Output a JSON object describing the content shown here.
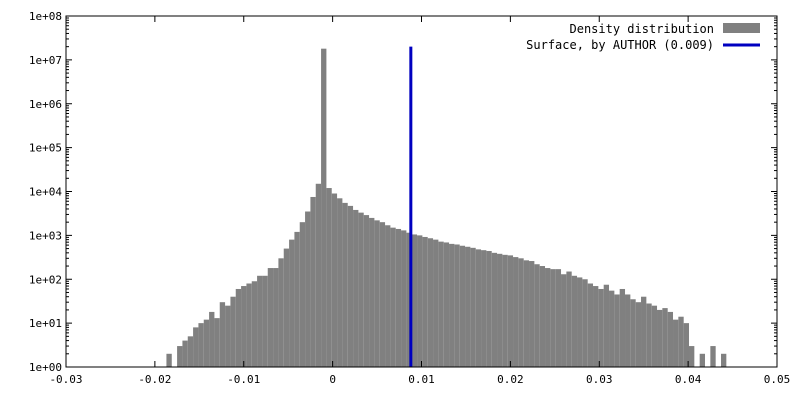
{
  "chart_data": {
    "type": "bar",
    "title": "",
    "xlabel": "",
    "ylabel": "",
    "y_scale": "log",
    "xlim": [
      -0.03,
      0.05
    ],
    "ylim": [
      1,
      100000000
    ],
    "grid": false,
    "legend_position": "top-right",
    "xticks": [
      "-0.03",
      "-0.02",
      "-0.01",
      "0",
      "0.01",
      "0.02",
      "0.03",
      "0.04",
      "0.05"
    ],
    "yticks": [
      "1e+00",
      "1e+01",
      "1e+02",
      "1e+03",
      "1e+04",
      "1e+05",
      "1e+06",
      "1e+07",
      "1e+08"
    ],
    "series": [
      {
        "name": "Density distribution",
        "color": "#808080",
        "bin_width": 0.0006,
        "x": [
          -0.0184,
          -0.0178,
          -0.0172,
          -0.0166,
          -0.016,
          -0.0154,
          -0.0148,
          -0.0142,
          -0.0136,
          -0.013,
          -0.0124,
          -0.0118,
          -0.0112,
          -0.0106,
          -0.01,
          -0.0094,
          -0.0088,
          -0.0082,
          -0.0076,
          -0.007,
          -0.0064,
          -0.0058,
          -0.0052,
          -0.0046,
          -0.004,
          -0.0034,
          -0.0028,
          -0.0022,
          -0.0016,
          -0.001,
          -0.0004,
          0.0002,
          0.0008,
          0.0014,
          0.002,
          0.0026,
          0.0032,
          0.0038,
          0.0044,
          0.005,
          0.0056,
          0.0062,
          0.0068,
          0.0074,
          0.008,
          0.0086,
          0.0092,
          0.0098,
          0.0104,
          0.011,
          0.0116,
          0.0122,
          0.0128,
          0.0134,
          0.014,
          0.0146,
          0.0152,
          0.0158,
          0.0164,
          0.017,
          0.0176,
          0.0182,
          0.0188,
          0.0194,
          0.02,
          0.0206,
          0.0212,
          0.0218,
          0.0224,
          0.023,
          0.0236,
          0.0242,
          0.0248,
          0.0254,
          0.026,
          0.0266,
          0.0272,
          0.0278,
          0.0284,
          0.029,
          0.0296,
          0.0302,
          0.0308,
          0.0314,
          0.032,
          0.0326,
          0.0332,
          0.0338,
          0.0344,
          0.035,
          0.0356,
          0.0362,
          0.0368,
          0.0374,
          0.038,
          0.0386,
          0.0392,
          0.0398,
          0.0404,
          0.041,
          0.0416,
          0.0422,
          0.0428,
          0.0434,
          0.044
        ],
        "values": [
          2,
          1,
          3,
          4,
          5,
          8,
          10,
          12,
          18,
          13,
          30,
          25,
          40,
          60,
          70,
          80,
          90,
          120,
          120,
          180,
          180,
          300,
          500,
          800,
          1200,
          2000,
          3500,
          7500,
          15000,
          18000000,
          12000,
          9000,
          7000,
          5500,
          4700,
          3800,
          3300,
          2900,
          2500,
          2200,
          2000,
          1700,
          1500,
          1400,
          1300,
          1150,
          1050,
          1000,
          920,
          860,
          800,
          720,
          690,
          640,
          620,
          580,
          550,
          520,
          480,
          460,
          440,
          400,
          380,
          360,
          350,
          320,
          300,
          270,
          260,
          220,
          200,
          180,
          170,
          170,
          130,
          150,
          120,
          110,
          100,
          80,
          70,
          60,
          75,
          55,
          45,
          60,
          45,
          35,
          30,
          40,
          28,
          25,
          20,
          22,
          18,
          12,
          14,
          10,
          3,
          1,
          2,
          1,
          3,
          1,
          2
        ]
      },
      {
        "name": "Surface, by AUTHOR (0.009)",
        "color": "#0000c0",
        "x": 0.0088,
        "y_top": 20000000
      }
    ]
  }
}
